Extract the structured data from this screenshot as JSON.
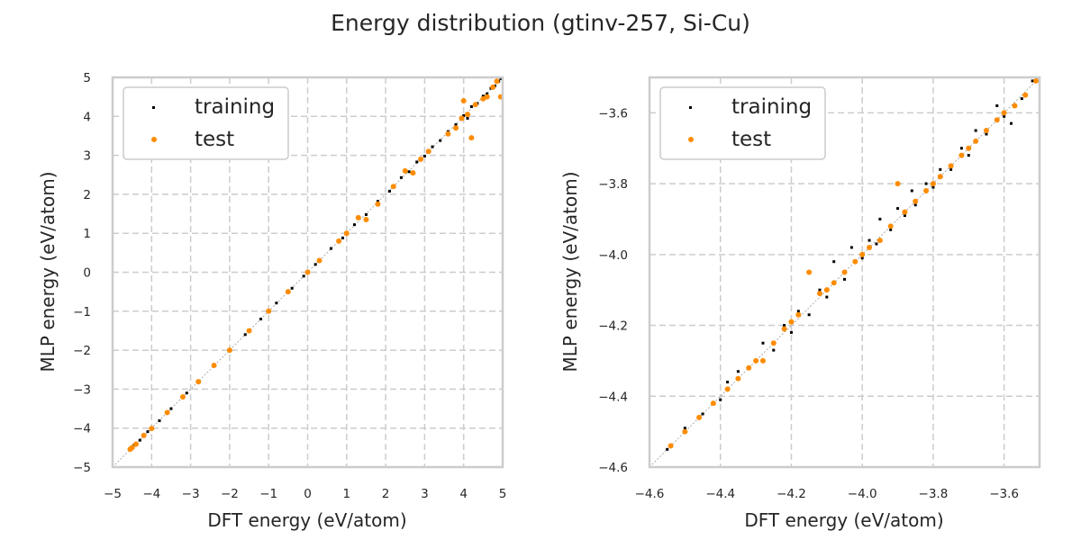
{
  "figure": {
    "title": "Energy distribution (gtinv-257, Si-Cu)"
  },
  "colors": {
    "training": "#000000",
    "test": "#ff8c00",
    "grid": "#cccccc",
    "frame": "#cccccc",
    "diagonal": "#999999"
  },
  "chart_data": [
    {
      "type": "scatter",
      "xlabel": "DFT energy (eV/atom)",
      "ylabel": "MLP energy (eV/atom)",
      "xlim": [
        -5,
        5
      ],
      "ylim": [
        -5,
        5
      ],
      "xticks": [
        -5,
        -4,
        -3,
        -2,
        -1,
        0,
        1,
        2,
        3,
        4,
        5
      ],
      "yticks": [
        -5,
        -4,
        -3,
        -2,
        -1,
        0,
        1,
        2,
        3,
        4,
        5
      ],
      "grid": true,
      "legend": "upper-left",
      "reference_line": "y = x",
      "series": [
        {
          "name": "training",
          "x": [
            -4.55,
            -4.45,
            -4.3,
            -4.1,
            -3.8,
            -3.5,
            -3.1,
            -2.8,
            -2.4,
            -2.0,
            -1.6,
            -1.2,
            -0.8,
            -0.4,
            -0.1,
            0.2,
            0.6,
            0.9,
            1.2,
            1.5,
            1.8,
            2.1,
            2.4,
            2.6,
            2.8,
            3.0,
            3.2,
            3.4,
            3.6,
            3.8,
            4.0,
            4.1,
            4.2,
            4.35,
            4.5,
            4.6,
            4.7,
            4.8,
            4.9,
            4.95
          ],
          "y": [
            -4.55,
            -4.44,
            -4.31,
            -4.09,
            -3.81,
            -3.5,
            -3.1,
            -2.79,
            -2.4,
            -2.01,
            -1.6,
            -1.2,
            -0.79,
            -0.41,
            -0.1,
            0.2,
            0.61,
            0.88,
            1.22,
            1.48,
            1.82,
            2.08,
            2.43,
            2.58,
            2.83,
            2.98,
            3.22,
            3.38,
            3.61,
            3.79,
            4.02,
            3.95,
            4.25,
            4.33,
            4.52,
            4.58,
            4.72,
            4.78,
            4.9,
            4.97
          ]
        },
        {
          "name": "test",
          "x": [
            -4.55,
            -4.5,
            -4.4,
            -4.2,
            -4.0,
            -3.6,
            -3.2,
            -2.8,
            -2.4,
            -2.0,
            -1.5,
            -1.0,
            -0.5,
            0.0,
            0.3,
            0.8,
            1.0,
            1.3,
            1.5,
            1.8,
            2.2,
            2.5,
            2.7,
            2.9,
            3.1,
            3.6,
            3.8,
            3.95,
            4.0,
            4.1,
            4.2,
            4.3,
            4.5,
            4.6,
            4.75,
            4.85,
            4.95
          ],
          "y": [
            -4.54,
            -4.5,
            -4.41,
            -4.19,
            -4.01,
            -3.6,
            -3.2,
            -2.81,
            -2.39,
            -2.0,
            -1.5,
            -1.0,
            -0.5,
            0.0,
            0.3,
            0.8,
            1.0,
            1.4,
            1.35,
            1.75,
            2.2,
            2.6,
            2.55,
            2.9,
            3.1,
            3.55,
            3.7,
            3.95,
            4.4,
            4.05,
            3.45,
            4.3,
            4.45,
            4.5,
            4.75,
            4.9,
            4.5
          ]
        }
      ]
    },
    {
      "type": "scatter",
      "xlabel": "DFT energy (eV/atom)",
      "ylabel": "MLP energy (eV/atom)",
      "xlim": [
        -4.6,
        -3.5
      ],
      "ylim": [
        -4.6,
        -3.5
      ],
      "xticks": [
        -4.6,
        -4.4,
        -4.2,
        -4.0,
        -3.8,
        -3.6
      ],
      "yticks": [
        -4.6,
        -4.4,
        -4.2,
        -4.0,
        -3.8,
        -3.6
      ],
      "grid": true,
      "legend": "upper-left",
      "reference_line": "y = x",
      "series": [
        {
          "name": "training",
          "x": [
            -4.55,
            -4.5,
            -4.45,
            -4.4,
            -4.38,
            -4.35,
            -4.3,
            -4.28,
            -4.25,
            -4.22,
            -4.2,
            -4.18,
            -4.15,
            -4.12,
            -4.1,
            -4.08,
            -4.05,
            -4.03,
            -4.0,
            -3.98,
            -3.96,
            -3.95,
            -3.92,
            -3.9,
            -3.88,
            -3.86,
            -3.85,
            -3.82,
            -3.8,
            -3.78,
            -3.75,
            -3.72,
            -3.7,
            -3.68,
            -3.65,
            -3.62,
            -3.6,
            -3.58,
            -3.55,
            -3.52
          ],
          "y": [
            -4.55,
            -4.49,
            -4.45,
            -4.41,
            -4.36,
            -4.33,
            -4.3,
            -4.25,
            -4.27,
            -4.2,
            -4.22,
            -4.16,
            -4.17,
            -4.1,
            -4.12,
            -4.02,
            -4.07,
            -3.98,
            -4.01,
            -3.96,
            -3.97,
            -3.9,
            -3.93,
            -3.87,
            -3.89,
            -3.82,
            -3.86,
            -3.8,
            -3.81,
            -3.76,
            -3.76,
            -3.7,
            -3.72,
            -3.65,
            -3.66,
            -3.58,
            -3.61,
            -3.63,
            -3.56,
            -3.51
          ]
        },
        {
          "name": "test",
          "x": [
            -4.54,
            -4.5,
            -4.46,
            -4.42,
            -4.38,
            -4.35,
            -4.32,
            -4.3,
            -4.28,
            -4.25,
            -4.22,
            -4.2,
            -4.18,
            -4.15,
            -4.12,
            -4.1,
            -4.08,
            -4.05,
            -4.02,
            -4.0,
            -3.98,
            -3.95,
            -3.92,
            -3.9,
            -3.88,
            -3.85,
            -3.82,
            -3.8,
            -3.78,
            -3.75,
            -3.72,
            -3.7,
            -3.68,
            -3.65,
            -3.62,
            -3.6,
            -3.57,
            -3.54,
            -3.51
          ],
          "y": [
            -4.54,
            -4.5,
            -4.46,
            -4.42,
            -4.38,
            -4.35,
            -4.32,
            -4.3,
            -4.3,
            -4.25,
            -4.21,
            -4.19,
            -4.17,
            -4.05,
            -4.11,
            -4.1,
            -4.08,
            -4.05,
            -4.02,
            -4.0,
            -3.98,
            -3.96,
            -3.92,
            -3.8,
            -3.88,
            -3.85,
            -3.82,
            -3.8,
            -3.78,
            -3.75,
            -3.72,
            -3.7,
            -3.68,
            -3.65,
            -3.62,
            -3.6,
            -3.58,
            -3.55,
            -3.51
          ]
        }
      ]
    }
  ]
}
